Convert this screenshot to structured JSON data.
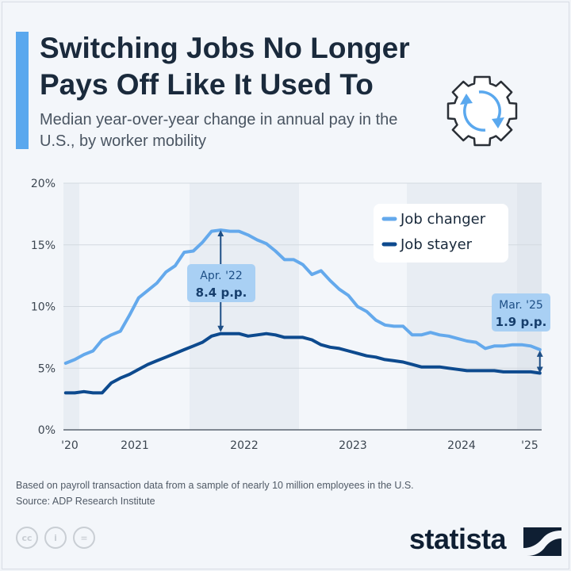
{
  "header": {
    "title": "Switching Jobs No Longer Pays Off Like It Used To",
    "subtitle": "Median year-over-year change in annual pay in the U.S., by worker mobility",
    "icon": "gear-refresh-icon"
  },
  "chart_data": {
    "type": "line",
    "x_start": "2020-11",
    "x_end": "2025-03",
    "frequency": "monthly",
    "x_tick_labels": [
      "'20",
      "2021",
      "2022",
      "2023",
      "2024",
      "'25"
    ],
    "y_tick_labels": [
      "0%",
      "5%",
      "10%",
      "15%",
      "20%"
    ],
    "ylim": [
      0,
      20
    ],
    "grid": true,
    "legend_placement": "top-right",
    "series": [
      {
        "name": "Job changer",
        "color": "#64a9ec",
        "values": [
          5.4,
          5.7,
          6.1,
          6.4,
          7.3,
          7.7,
          8.0,
          9.3,
          10.7,
          11.3,
          11.9,
          12.8,
          13.3,
          14.4,
          14.5,
          15.2,
          16.1,
          16.2,
          16.1,
          16.1,
          15.8,
          15.4,
          15.1,
          14.5,
          13.8,
          13.8,
          13.4,
          12.6,
          12.9,
          12.1,
          11.4,
          10.9,
          10.0,
          9.6,
          8.9,
          8.5,
          8.4,
          8.4,
          7.7,
          7.7,
          7.9,
          7.7,
          7.6,
          7.4,
          7.2,
          7.1,
          6.6,
          6.8,
          6.8,
          6.9,
          6.9,
          6.8,
          6.5
        ]
      },
      {
        "name": "Job stayer",
        "color": "#0d4a8e",
        "values": [
          3.0,
          3.0,
          3.1,
          3.0,
          3.0,
          3.8,
          4.2,
          4.5,
          4.9,
          5.3,
          5.6,
          5.9,
          6.2,
          6.5,
          6.8,
          7.1,
          7.6,
          7.8,
          7.8,
          7.8,
          7.6,
          7.7,
          7.8,
          7.7,
          7.5,
          7.5,
          7.5,
          7.3,
          6.9,
          6.7,
          6.6,
          6.4,
          6.2,
          6.0,
          5.9,
          5.7,
          5.6,
          5.5,
          5.3,
          5.1,
          5.1,
          5.1,
          5.0,
          4.9,
          4.8,
          4.8,
          4.8,
          4.8,
          4.7,
          4.7,
          4.7,
          4.7,
          4.6
        ]
      }
    ],
    "annotations": [
      {
        "date": "Apr. '22",
        "value": "8.4 p.p."
      },
      {
        "date": "Mar. '25",
        "value": "1.9 p.p."
      }
    ]
  },
  "footer": {
    "note": "Based on payroll transaction data from a sample of nearly 10 million employees in the U.S.",
    "source": "Source: ADP Research Institute",
    "license_icons": [
      "cc-icon",
      "attribution-icon",
      "no-derivatives-icon"
    ],
    "brand": "statista"
  }
}
